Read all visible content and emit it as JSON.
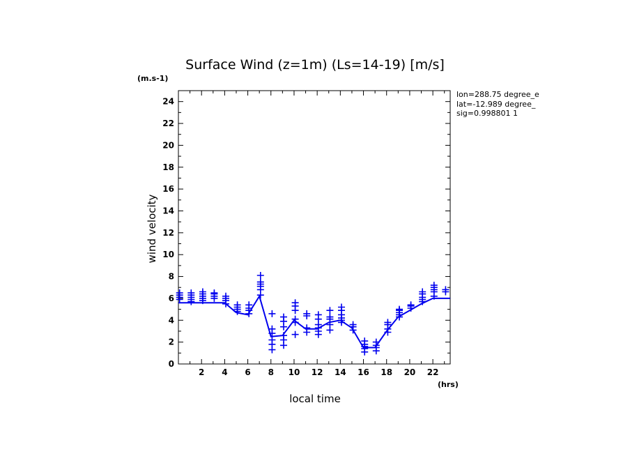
{
  "chart_data": {
    "type": "scatter",
    "title": "Surface Wind (z=1m) (Ls=14-19) [m/s]",
    "ylabel": "wind velocity",
    "xlabel": "local time",
    "y_unit": "(m.s-1)",
    "x_unit": "(hrs)",
    "xlim": [
      0,
      23.5
    ],
    "ylim": [
      0,
      25
    ],
    "xticks": [
      2,
      4,
      6,
      8,
      10,
      12,
      14,
      16,
      18,
      20,
      22
    ],
    "yticks": [
      0,
      2,
      4,
      6,
      8,
      10,
      12,
      14,
      16,
      18,
      20,
      22,
      24
    ],
    "info": [
      "lon=288.75 degree_e",
      "lat=-12.989 degree_",
      "sig=0.998801 1"
    ],
    "line": {
      "x": [
        0,
        4,
        5,
        6,
        7,
        8,
        9,
        10,
        11,
        12,
        13,
        14,
        15,
        16,
        17,
        18,
        19,
        20,
        21,
        22,
        23.5
      ],
      "y": [
        5.6,
        5.6,
        4.7,
        4.5,
        6.2,
        2.5,
        2.6,
        4.0,
        3.2,
        3.2,
        3.8,
        4.0,
        3.3,
        1.5,
        1.5,
        3.0,
        4.3,
        4.9,
        5.5,
        6.0,
        6.0
      ]
    },
    "markers": [
      {
        "x": 0.1,
        "y": [
          5.9,
          6.1,
          6.3,
          6.5
        ]
      },
      {
        "x": 1.1,
        "y": [
          5.7,
          5.9,
          6.1,
          6.3,
          6.5
        ]
      },
      {
        "x": 2.1,
        "y": [
          5.8,
          6.0,
          6.2,
          6.4,
          6.6
        ]
      },
      {
        "x": 3.1,
        "y": [
          6.0,
          6.2,
          6.4,
          6.5
        ]
      },
      {
        "x": 4.1,
        "y": [
          5.5,
          5.8,
          6.0,
          6.2
        ]
      },
      {
        "x": 5.1,
        "y": [
          4.8,
          5.0,
          5.2,
          5.4
        ]
      },
      {
        "x": 6.1,
        "y": [
          4.6,
          4.9,
          5.1,
          5.4
        ]
      },
      {
        "x": 7.1,
        "y": [
          6.3,
          6.8,
          7.1,
          7.3,
          7.5,
          8.1
        ]
      },
      {
        "x": 8.1,
        "y": [
          1.3,
          1.8,
          2.2,
          2.8,
          3.2,
          4.6
        ]
      },
      {
        "x": 9.1,
        "y": [
          1.7,
          2.2,
          2.6,
          3.4,
          3.9,
          4.3
        ]
      },
      {
        "x": 10.1,
        "y": [
          2.7,
          3.8,
          4.1,
          4.9,
          5.3,
          5.6
        ]
      },
      {
        "x": 11.1,
        "y": [
          2.9,
          3.3,
          4.4,
          4.6
        ]
      },
      {
        "x": 12.1,
        "y": [
          2.7,
          3.0,
          3.3,
          3.6,
          4.1,
          4.5
        ]
      },
      {
        "x": 13.1,
        "y": [
          3.1,
          3.6,
          4.1,
          4.3,
          4.9
        ]
      },
      {
        "x": 14.1,
        "y": [
          3.8,
          4.0,
          4.2,
          4.5,
          4.9,
          5.2
        ]
      },
      {
        "x": 15.1,
        "y": [
          3.1,
          3.4,
          3.6
        ]
      },
      {
        "x": 16.1,
        "y": [
          1.1,
          1.4,
          1.6,
          1.8,
          2.1
        ]
      },
      {
        "x": 17.1,
        "y": [
          1.2,
          1.5,
          1.7,
          2.0
        ]
      },
      {
        "x": 18.1,
        "y": [
          2.9,
          3.2,
          3.6,
          3.8
        ]
      },
      {
        "x": 19.1,
        "y": [
          4.3,
          4.5,
          4.7,
          4.9,
          5.0
        ]
      },
      {
        "x": 20.1,
        "y": [
          5.1,
          5.3,
          5.4
        ]
      },
      {
        "x": 21.1,
        "y": [
          5.7,
          5.9,
          6.1,
          6.4,
          6.6
        ]
      },
      {
        "x": 22.1,
        "y": [
          6.2,
          6.6,
          6.8,
          7.0,
          7.2
        ]
      },
      {
        "x": 23.1,
        "y": [
          6.6,
          6.8
        ]
      }
    ],
    "colors": {
      "series": "#0000ee",
      "axes": "#000000"
    },
    "grid": false,
    "legend": "none"
  }
}
